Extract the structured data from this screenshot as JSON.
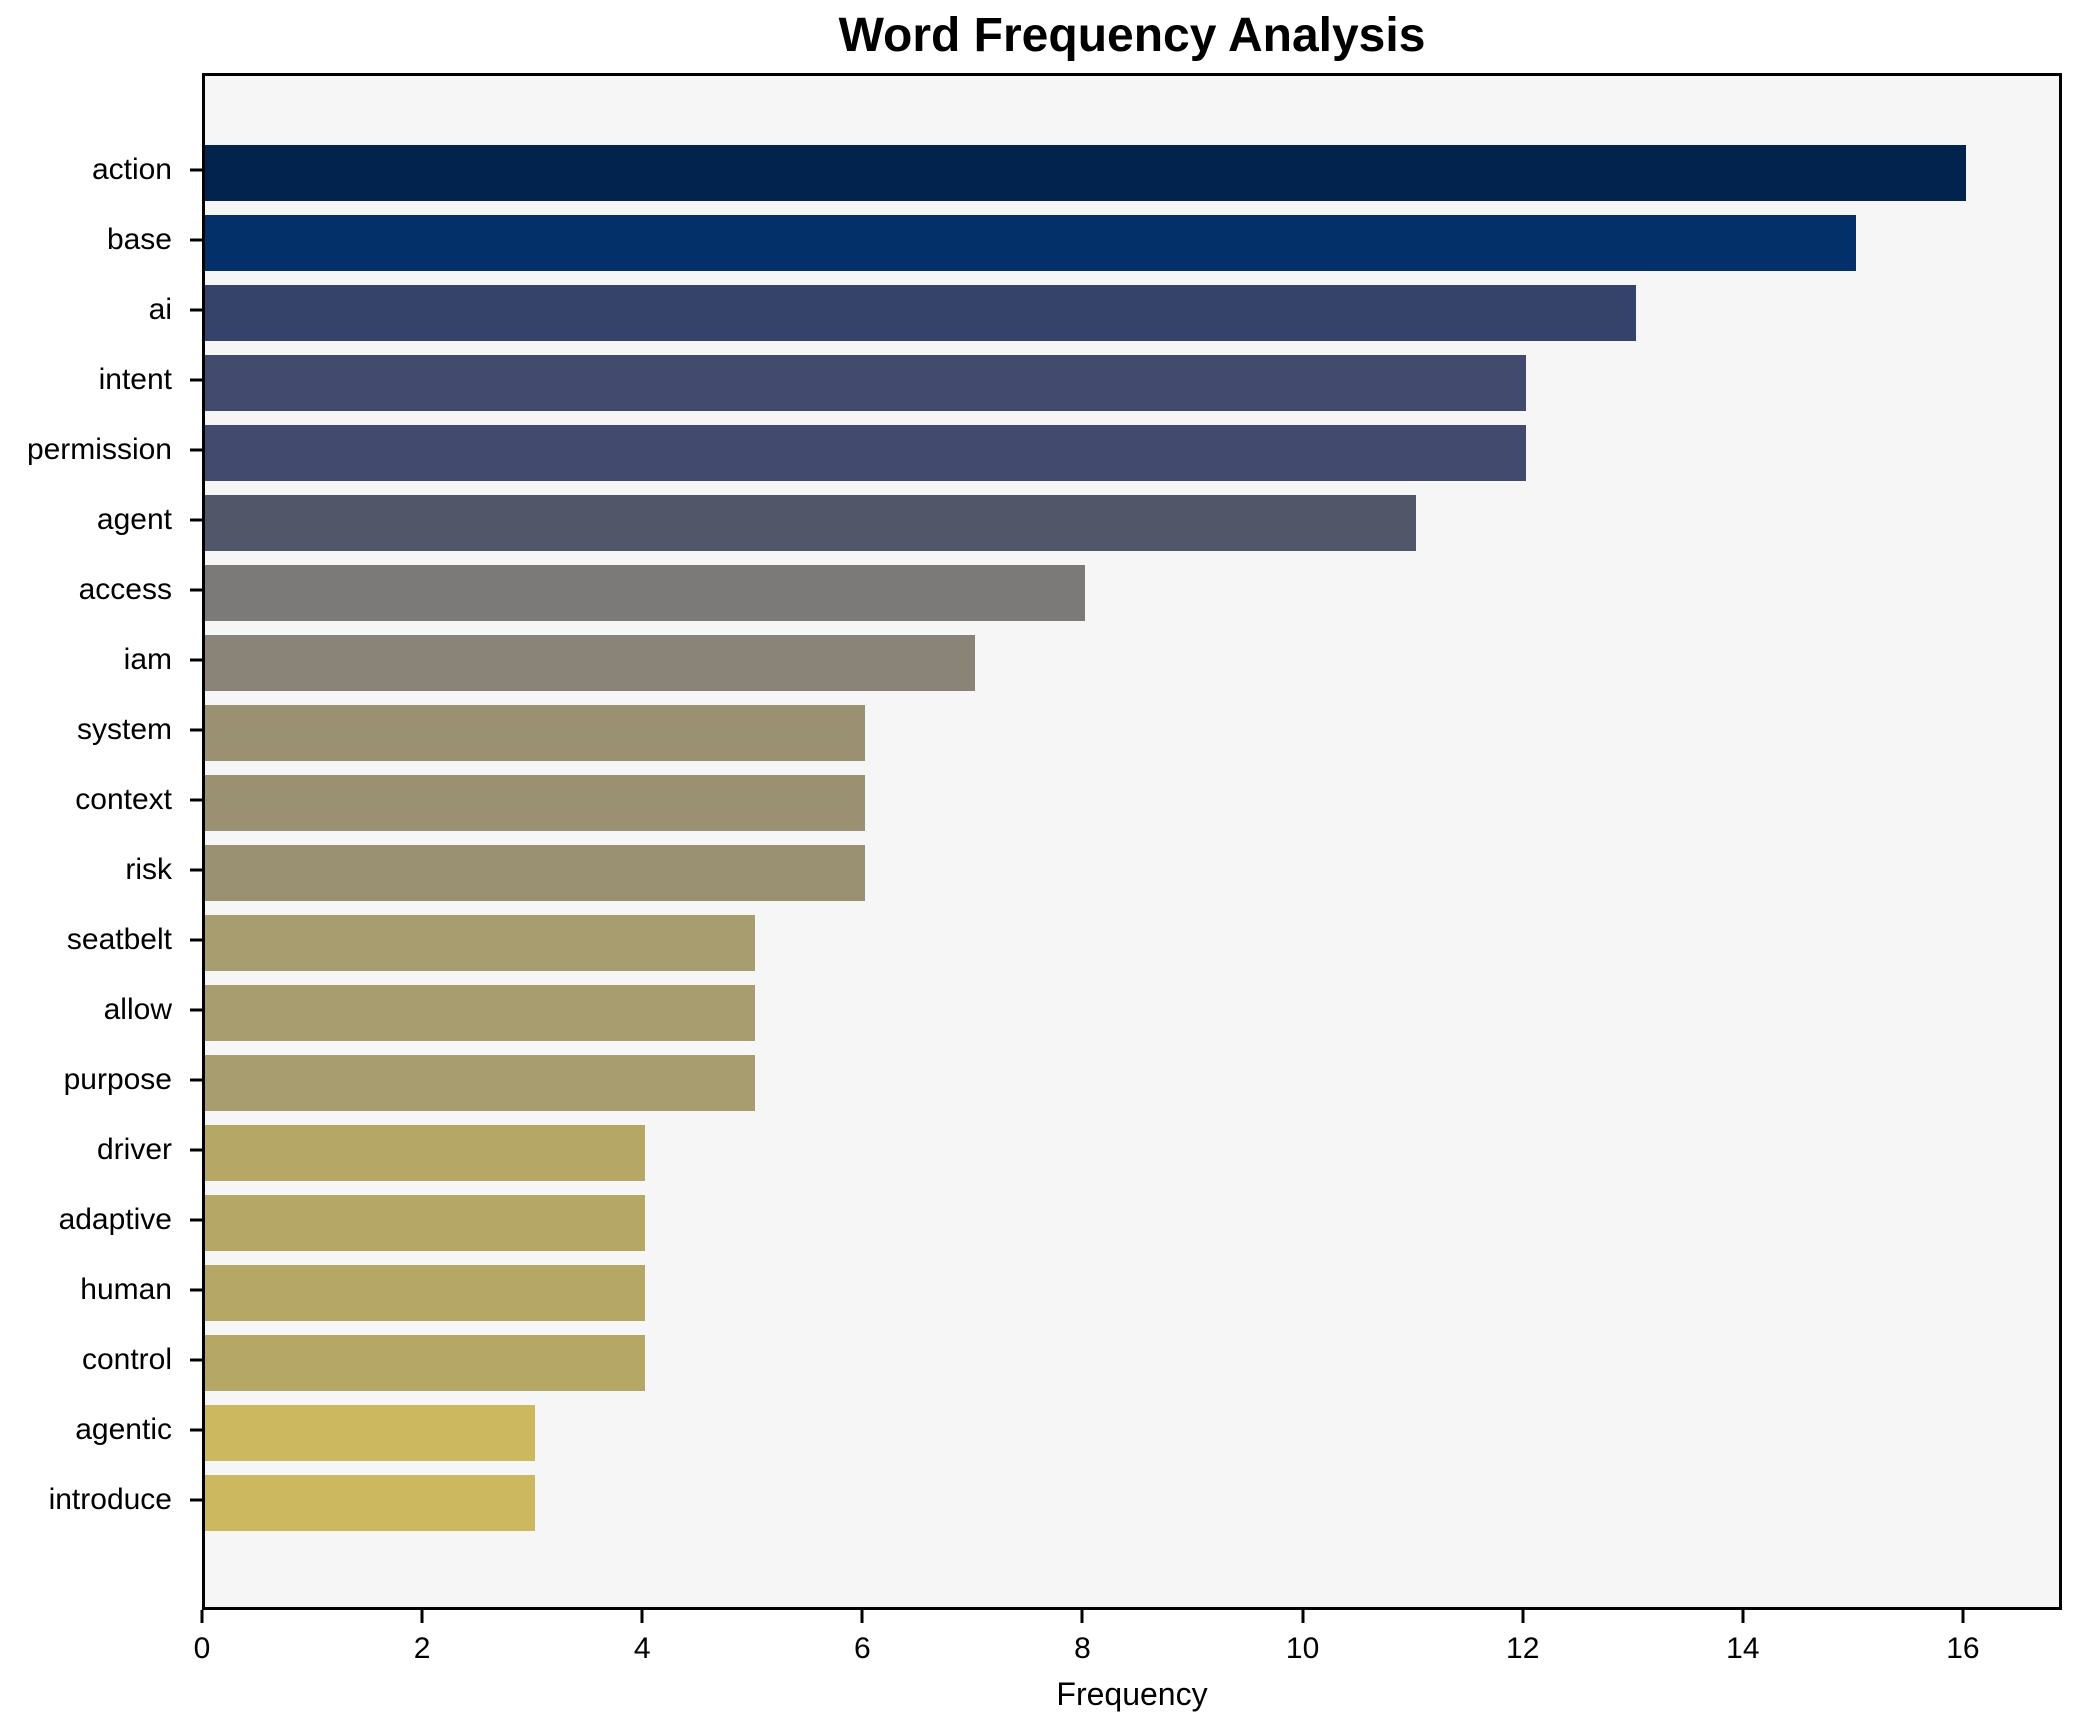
{
  "chart_data": {
    "type": "bar",
    "orientation": "horizontal",
    "title": "Word Frequency Analysis",
    "xlabel": "Frequency",
    "ylabel": "",
    "categories": [
      "action",
      "base",
      "ai",
      "intent",
      "permission",
      "agent",
      "access",
      "iam",
      "system",
      "context",
      "risk",
      "seatbelt",
      "allow",
      "purpose",
      "driver",
      "adaptive",
      "human",
      "control",
      "agentic",
      "introduce"
    ],
    "values": [
      16,
      15,
      13,
      12,
      12,
      11,
      8,
      7,
      6,
      6,
      6,
      5,
      5,
      5,
      4,
      4,
      4,
      4,
      3,
      3
    ],
    "bar_colors": [
      "#02234d",
      "#043069",
      "#35436a",
      "#424b6d",
      "#424b6d",
      "#525669",
      "#7b7a78",
      "#8a8478",
      "#9a9172",
      "#9a9172",
      "#9a9172",
      "#a89d6e",
      "#a89d6e",
      "#a89d6e",
      "#b5a765",
      "#b5a765",
      "#b5a765",
      "#b5a765",
      "#ccb95f",
      "#ccb95f"
    ],
    "xticks": [
      0,
      2,
      4,
      6,
      8,
      10,
      12,
      14,
      16
    ],
    "xlim": [
      0,
      16.9
    ],
    "grid": false,
    "legend": null,
    "plot_background": "#f6f6f6",
    "figure_background": "#ffffff",
    "colormap": "cividis"
  }
}
